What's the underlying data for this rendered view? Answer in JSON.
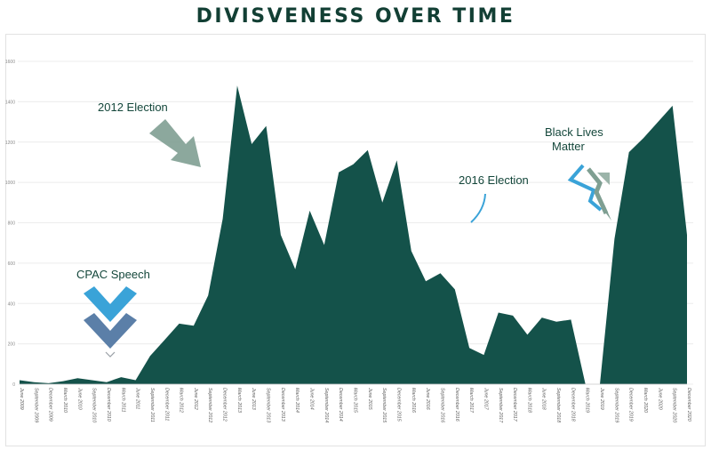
{
  "title": "DIVISVENESS OVER TIME",
  "colors": {
    "area": "#14524a",
    "title": "#123f34",
    "arrow_blue": "#3aa3d8",
    "arrow_slate": "#5b7fa8",
    "arrow_sage": "#7f9f92"
  },
  "annotations": {
    "election_2012": "2012 Election",
    "election_2016": "2016 Election",
    "blm_line1": "Black Lives",
    "blm_line2": "Matter",
    "cpac": "CPAC Speech"
  },
  "chart_data": {
    "type": "area",
    "title": "DIVISVENESS OVER TIME",
    "xlabel": "",
    "ylabel": "",
    "ylim": [
      0,
      1600
    ],
    "yticks": [
      "0",
      "200",
      "400",
      "600",
      "800",
      "1000",
      "1200",
      "1400",
      "1600"
    ],
    "grid": true,
    "legend": "none",
    "categories": [
      "June 2009",
      "September 2009",
      "December 2009",
      "March 2010",
      "June 2010",
      "September 2010",
      "December 2010",
      "March 2011",
      "June 2011",
      "September 2011",
      "December 2011",
      "March 2012",
      "June 2012",
      "September 2012",
      "December 2012",
      "March 2013",
      "June 2013",
      "September 2013",
      "December 2013",
      "March 2014",
      "June 2014",
      "September 2014",
      "December 2014",
      "March 2015",
      "June 2015",
      "September 2015",
      "December 2015",
      "March 2016",
      "June 2016",
      "September 2016",
      "December 2016",
      "March 2017",
      "June 2017",
      "September 2017",
      "December 2017",
      "March 2018",
      "June 2018",
      "September 2018",
      "December 2018",
      "March 2019",
      "June 2019",
      "September 2019",
      "December 2019",
      "March 2020",
      "June 2020",
      "September 2020",
      "December 2020"
    ],
    "values": [
      20,
      10,
      5,
      15,
      30,
      20,
      10,
      35,
      20,
      140,
      220,
      300,
      290,
      440,
      820,
      1480,
      1190,
      1280,
      740,
      570,
      860,
      690,
      1050,
      1090,
      1160,
      900,
      1110,
      660,
      510,
      550,
      470,
      180,
      145,
      355,
      340,
      245,
      330,
      310,
      320,
      0,
      0,
      720,
      1150,
      1220,
      1300,
      1380,
      740
    ]
  }
}
